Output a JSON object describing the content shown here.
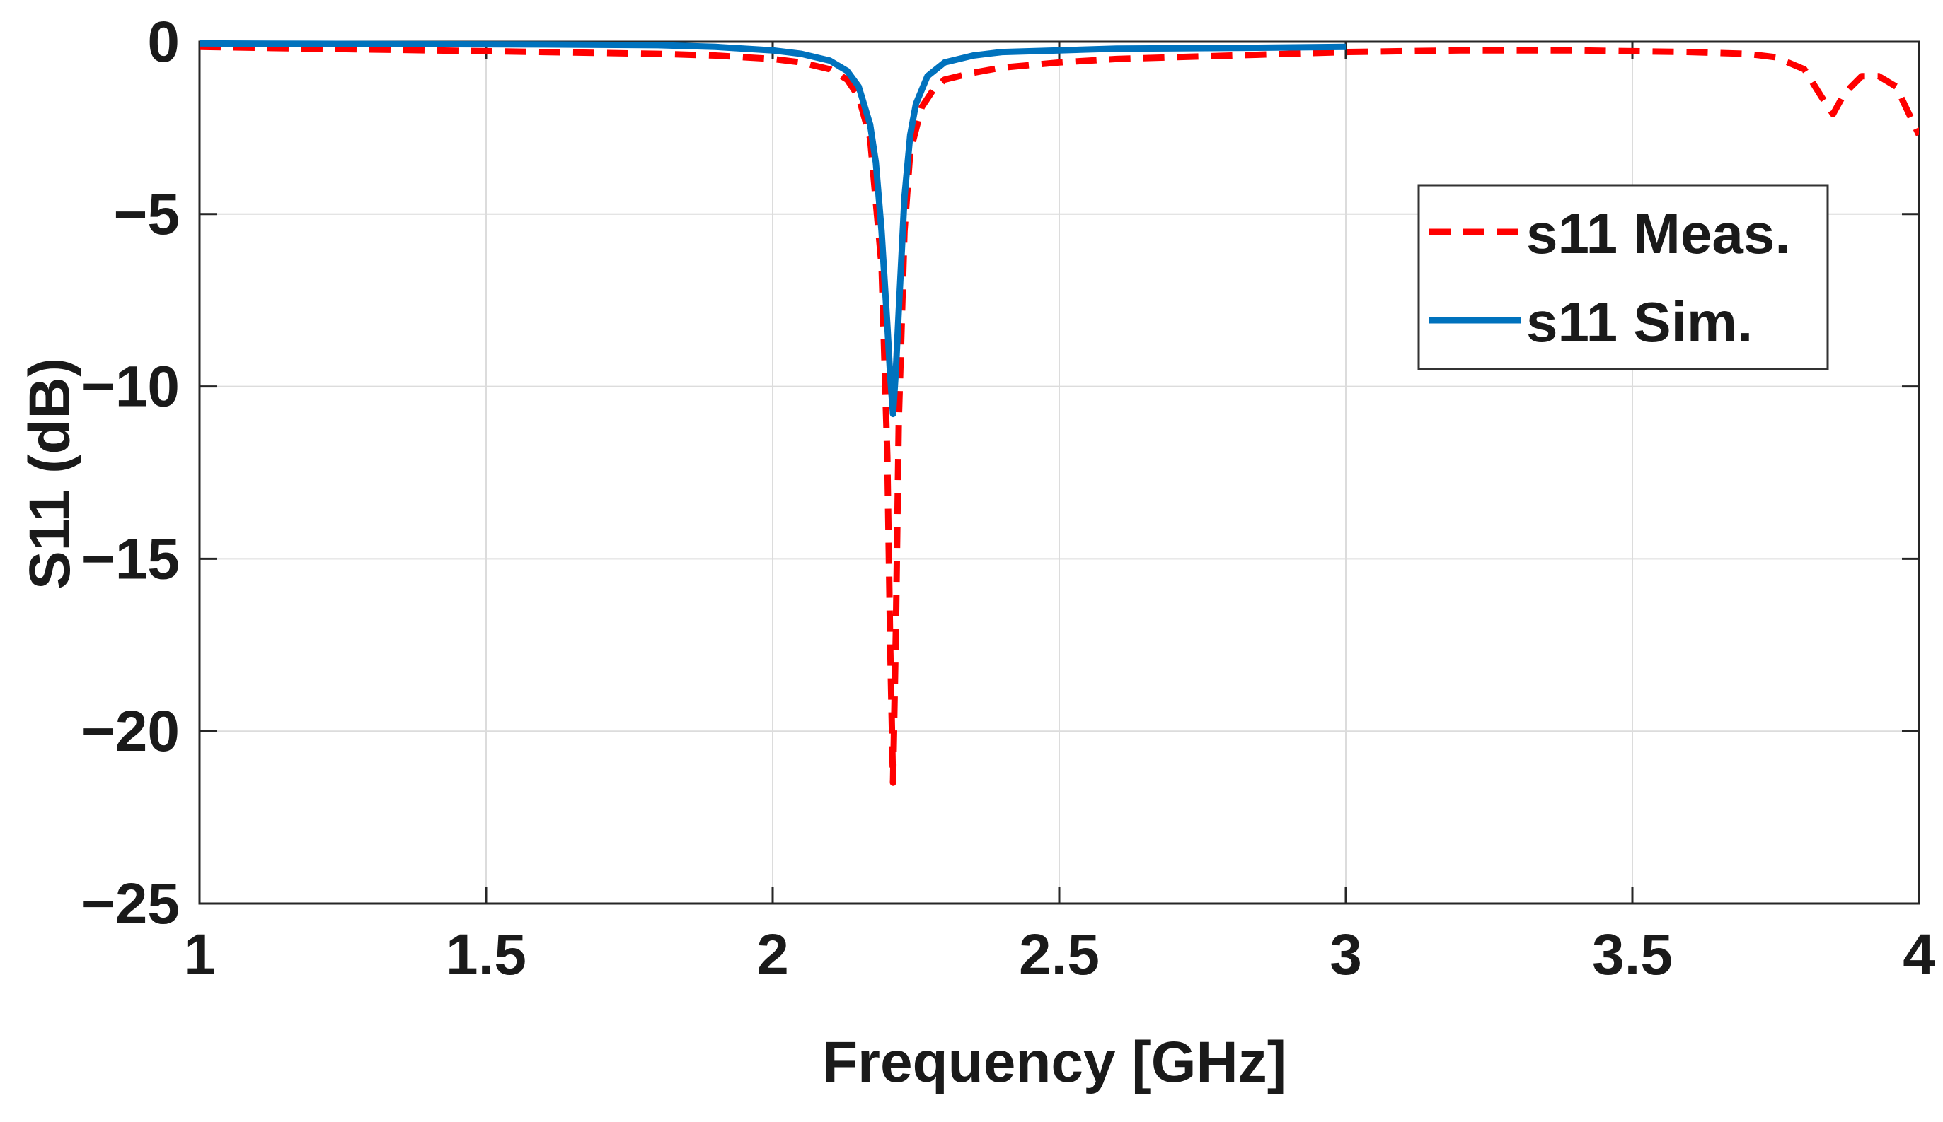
{
  "chart_data": {
    "type": "line",
    "title": "",
    "xlabel": "Frequency [GHz]",
    "ylabel": "S11 (dB)",
    "xlim": [
      1,
      4
    ],
    "ylim": [
      -25,
      0
    ],
    "xticks": [
      1,
      1.5,
      2,
      2.5,
      3,
      3.5,
      4
    ],
    "xtick_labels": [
      "1",
      "1.5",
      "2",
      "2.5",
      "3",
      "3.5",
      "4"
    ],
    "yticks": [
      0,
      -5,
      -10,
      -15,
      -20,
      -25
    ],
    "ytick_labels": [
      "0",
      "−5",
      "−10",
      "−15",
      "−20",
      "−25"
    ],
    "grid": true,
    "legend": {
      "position": "top-right"
    },
    "series": [
      {
        "name": "s11 Meas.",
        "color": "#ff0000",
        "style": "dashed",
        "x": [
          1.0,
          1.2,
          1.4,
          1.6,
          1.8,
          1.9,
          2.0,
          2.05,
          2.1,
          2.13,
          2.15,
          2.17,
          2.19,
          2.2,
          2.205,
          2.21,
          2.215,
          2.22,
          2.23,
          2.24,
          2.26,
          2.28,
          2.3,
          2.35,
          2.4,
          2.5,
          2.6,
          2.8,
          3.0,
          3.2,
          3.4,
          3.6,
          3.7,
          3.75,
          3.8,
          3.83,
          3.85,
          3.87,
          3.9,
          3.93,
          3.96,
          3.98,
          4.0
        ],
        "values": [
          -0.15,
          -0.2,
          -0.25,
          -0.3,
          -0.35,
          -0.4,
          -0.5,
          -0.6,
          -0.8,
          -1.1,
          -1.6,
          -2.8,
          -6.5,
          -12.0,
          -17.5,
          -21.5,
          -17.0,
          -11.0,
          -5.5,
          -3.2,
          -1.9,
          -1.4,
          -1.1,
          -0.9,
          -0.75,
          -0.6,
          -0.5,
          -0.4,
          -0.3,
          -0.25,
          -0.25,
          -0.3,
          -0.35,
          -0.45,
          -0.8,
          -1.6,
          -2.1,
          -1.5,
          -1.0,
          -1.0,
          -1.3,
          -2.0,
          -2.7
        ]
      },
      {
        "name": "s11 Sim.",
        "color": "#0072bd",
        "style": "solid",
        "x": [
          1.0,
          1.2,
          1.4,
          1.6,
          1.8,
          1.9,
          2.0,
          2.05,
          2.1,
          2.13,
          2.15,
          2.17,
          2.18,
          2.19,
          2.2,
          2.205,
          2.21,
          2.215,
          2.22,
          2.23,
          2.24,
          2.25,
          2.27,
          2.3,
          2.35,
          2.4,
          2.5,
          2.6,
          2.8,
          3.0
        ],
        "values": [
          -0.05,
          -0.06,
          -0.07,
          -0.08,
          -0.1,
          -0.15,
          -0.25,
          -0.35,
          -0.55,
          -0.85,
          -1.3,
          -2.4,
          -3.5,
          -5.5,
          -8.2,
          -9.7,
          -10.8,
          -9.5,
          -7.8,
          -4.5,
          -2.7,
          -1.8,
          -1.0,
          -0.6,
          -0.4,
          -0.3,
          -0.25,
          -0.2,
          -0.18,
          -0.15
        ]
      }
    ]
  }
}
